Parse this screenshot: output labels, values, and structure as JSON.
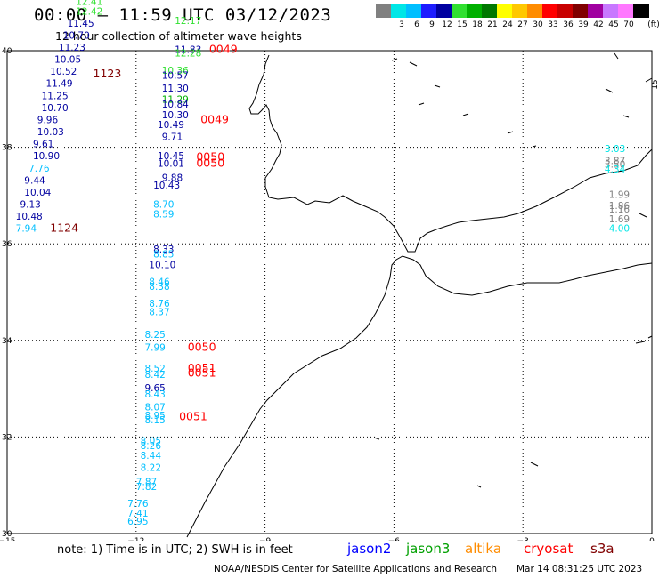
{
  "header": {
    "title": "00:00 – 11:59 UTC 03/12/2023",
    "subtitle": "12 hour collection of altimeter wave heights"
  },
  "scale": {
    "unit": "(ft)",
    "steps": [
      {
        "label": "",
        "color": "#808080"
      },
      {
        "label": "3",
        "color": "#00e6e6"
      },
      {
        "label": "6",
        "color": "#00bfff"
      },
      {
        "label": "9",
        "color": "#1c1cff"
      },
      {
        "label": "12",
        "color": "#0000a0"
      },
      {
        "label": "15",
        "color": "#30e030"
      },
      {
        "label": "18",
        "color": "#00b000"
      },
      {
        "label": "21",
        "color": "#007800"
      },
      {
        "label": "24",
        "color": "#ffff00"
      },
      {
        "label": "27",
        "color": "#ffc800"
      },
      {
        "label": "30",
        "color": "#ff8c00"
      },
      {
        "label": "33",
        "color": "#ff0000"
      },
      {
        "label": "36",
        "color": "#c80000"
      },
      {
        "label": "39",
        "color": "#800000"
      },
      {
        "label": "42",
        "color": "#a000a0"
      },
      {
        "label": "45",
        "color": "#c878ff"
      },
      {
        "label": "70",
        "color": "#ff78ff"
      },
      {
        "label": "",
        "color": "#000000"
      }
    ]
  },
  "map": {
    "lon_range": [
      -15,
      0
    ],
    "lat_range": [
      30,
      40
    ],
    "lon_ticks": [
      "−15",
      "−12",
      "−9",
      "−6",
      "−3",
      "0"
    ],
    "lat_ticks": [
      "40",
      "38",
      "36",
      "34",
      "32",
      "30"
    ],
    "right_label": "15"
  },
  "tracks": [
    {
      "name": "track-a",
      "points": [
        {
          "v": "12.41",
          "lon": -13.4,
          "lat": 40.95,
          "color": "#30e030"
        },
        {
          "v": "12.42",
          "lon": -13.4,
          "lat": 40.75,
          "color": "#30e030"
        },
        {
          "v": "11.45",
          "lon": -13.6,
          "lat": 40.5,
          "color": "#0000a0"
        },
        {
          "v": "10.70",
          "lon": -13.7,
          "lat": 40.25,
          "color": "#0000a0"
        },
        {
          "v": "11.23",
          "lon": -13.8,
          "lat": 40.0,
          "color": "#0000a0"
        },
        {
          "v": "10.05",
          "lon": -13.9,
          "lat": 39.75,
          "color": "#0000a0"
        },
        {
          "v": "10.52",
          "lon": -14.0,
          "lat": 39.5,
          "color": "#0000a0"
        },
        {
          "v": "11.49",
          "lon": -14.1,
          "lat": 39.25,
          "color": "#0000a0"
        },
        {
          "v": "11.25",
          "lon": -14.2,
          "lat": 39.0,
          "color": "#0000a0"
        },
        {
          "v": "10.70",
          "lon": -14.2,
          "lat": 38.75,
          "color": "#0000a0"
        },
        {
          "v": "9.96",
          "lon": -14.3,
          "lat": 38.5,
          "color": "#0000a0"
        },
        {
          "v": "10.03",
          "lon": -14.3,
          "lat": 38.25,
          "color": "#0000a0"
        },
        {
          "v": "9.61",
          "lon": -14.4,
          "lat": 38.0,
          "color": "#0000a0"
        },
        {
          "v": "10.90",
          "lon": -14.4,
          "lat": 37.75,
          "color": "#0000a0"
        },
        {
          "v": "7.76",
          "lon": -14.5,
          "lat": 37.5,
          "color": "#00bfff"
        },
        {
          "v": "9.44",
          "lon": -14.6,
          "lat": 37.25,
          "color": "#0000a0"
        },
        {
          "v": "10.04",
          "lon": -14.6,
          "lat": 37.0,
          "color": "#0000a0"
        },
        {
          "v": "9.13",
          "lon": -14.7,
          "lat": 36.75,
          "color": "#0000a0"
        },
        {
          "v": "10.48",
          "lon": -14.8,
          "lat": 36.5,
          "color": "#0000a0"
        },
        {
          "v": "7.94",
          "lon": -14.8,
          "lat": 36.25,
          "color": "#00bfff"
        }
      ],
      "times": [
        {
          "t": "1123",
          "lon": -13.0,
          "lat": 39.45,
          "color": "#800000"
        },
        {
          "t": "1124",
          "lon": -14.0,
          "lat": 36.25,
          "color": "#800000"
        }
      ]
    },
    {
      "name": "track-b",
      "points": [
        {
          "v": "12.17",
          "lon": -11.1,
          "lat": 40.55,
          "color": "#30e030"
        },
        {
          "v": "11.83",
          "lon": -11.1,
          "lat": 39.95,
          "color": "#0000a0"
        },
        {
          "v": "12.28",
          "lon": -11.1,
          "lat": 39.88,
          "color": "#30e030"
        },
        {
          "v": "10.36",
          "lon": -11.4,
          "lat": 39.52,
          "color": "#30e030"
        },
        {
          "v": "10.57",
          "lon": -11.4,
          "lat": 39.42,
          "color": "#0000a0"
        },
        {
          "v": "11.30",
          "lon": -11.4,
          "lat": 39.15,
          "color": "#0000a0"
        },
        {
          "v": "11.29",
          "lon": -11.4,
          "lat": 38.92,
          "color": "#00b000"
        },
        {
          "v": "10.84",
          "lon": -11.4,
          "lat": 38.82,
          "color": "#0000a0"
        },
        {
          "v": "10.30",
          "lon": -11.4,
          "lat": 38.6,
          "color": "#0000a0"
        },
        {
          "v": "10.49",
          "lon": -11.5,
          "lat": 38.4,
          "color": "#0000a0"
        },
        {
          "v": "9.71",
          "lon": -11.4,
          "lat": 38.15,
          "color": "#0000a0"
        },
        {
          "v": "10.45",
          "lon": -11.5,
          "lat": 37.75,
          "color": "#0000a0"
        },
        {
          "v": "10.01",
          "lon": -11.5,
          "lat": 37.6,
          "color": "#0000a0"
        },
        {
          "v": "9.88",
          "lon": -11.4,
          "lat": 37.3,
          "color": "#0000a0"
        },
        {
          "v": "10.43",
          "lon": -11.6,
          "lat": 37.15,
          "color": "#0000a0"
        },
        {
          "v": "8.70",
          "lon": -11.6,
          "lat": 36.75,
          "color": "#00bfff"
        },
        {
          "v": "8.59",
          "lon": -11.6,
          "lat": 36.55,
          "color": "#00bfff"
        },
        {
          "v": "8.33",
          "lon": -11.6,
          "lat": 35.82,
          "color": "#0000a0"
        },
        {
          "v": "8.85",
          "lon": -11.6,
          "lat": 35.72,
          "color": "#00bfff"
        },
        {
          "v": "10.10",
          "lon": -11.7,
          "lat": 35.5,
          "color": "#0000a0"
        },
        {
          "v": "8.46",
          "lon": -11.7,
          "lat": 35.15,
          "color": "#00bfff"
        },
        {
          "v": "8.38",
          "lon": -11.7,
          "lat": 35.05,
          "color": "#00bfff"
        },
        {
          "v": "8.76",
          "lon": -11.7,
          "lat": 34.7,
          "color": "#00bfff"
        },
        {
          "v": "8.37",
          "lon": -11.7,
          "lat": 34.52,
          "color": "#00bfff"
        },
        {
          "v": "8.25",
          "lon": -11.8,
          "lat": 34.05,
          "color": "#00bfff"
        },
        {
          "v": "7.99",
          "lon": -11.8,
          "lat": 33.78,
          "color": "#00bfff"
        },
        {
          "v": "8.52",
          "lon": -11.8,
          "lat": 33.35,
          "color": "#00bfff"
        },
        {
          "v": "8.42",
          "lon": -11.8,
          "lat": 33.22,
          "color": "#00bfff"
        },
        {
          "v": "9.65",
          "lon": -11.8,
          "lat": 32.95,
          "color": "#0000a0"
        },
        {
          "v": "8.43",
          "lon": -11.8,
          "lat": 32.82,
          "color": "#00bfff"
        },
        {
          "v": "8.07",
          "lon": -11.8,
          "lat": 32.55,
          "color": "#00bfff"
        },
        {
          "v": "8.95",
          "lon": -11.8,
          "lat": 32.38,
          "color": "#00bfff"
        },
        {
          "v": "8.15",
          "lon": -11.8,
          "lat": 32.28,
          "color": "#00bfff"
        },
        {
          "v": "8.05",
          "lon": -11.9,
          "lat": 31.85,
          "color": "#00bfff"
        },
        {
          "v": "8.26",
          "lon": -11.9,
          "lat": 31.75,
          "color": "#00bfff"
        },
        {
          "v": "8.44",
          "lon": -11.9,
          "lat": 31.55,
          "color": "#00bfff"
        },
        {
          "v": "8.22",
          "lon": -11.9,
          "lat": 31.3,
          "color": "#00bfff"
        },
        {
          "v": "7.87",
          "lon": -12.0,
          "lat": 31.0,
          "color": "#00bfff"
        },
        {
          "v": "7.82",
          "lon": -12.0,
          "lat": 30.9,
          "color": "#00bfff"
        },
        {
          "v": "7.76",
          "lon": -12.2,
          "lat": 30.55,
          "color": "#00bfff"
        },
        {
          "v": "7.41",
          "lon": -12.2,
          "lat": 30.35,
          "color": "#00bfff"
        },
        {
          "v": "6.95",
          "lon": -12.2,
          "lat": 30.18,
          "color": "#00bfff"
        }
      ],
      "times": [
        {
          "t": "0049",
          "lon": -10.3,
          "lat": 39.95,
          "color": "#ff0000"
        },
        {
          "t": "0049",
          "lon": -10.5,
          "lat": 38.5,
          "color": "#ff0000"
        },
        {
          "t": "0050",
          "lon": -10.6,
          "lat": 37.73,
          "color": "#ff0000"
        },
        {
          "t": "0050",
          "lon": -10.6,
          "lat": 37.6,
          "color": "#ff0000"
        },
        {
          "t": "0050",
          "lon": -10.8,
          "lat": 33.78,
          "color": "#ff0000"
        },
        {
          "t": "0051",
          "lon": -10.8,
          "lat": 33.35,
          "color": "#ff0000"
        },
        {
          "t": "0051",
          "lon": -10.8,
          "lat": 33.25,
          "color": "#ff0000"
        },
        {
          "t": "0051",
          "lon": -11.0,
          "lat": 32.35,
          "color": "#ff0000"
        }
      ]
    },
    {
      "name": "track-c",
      "points": [
        {
          "v": "3.03",
          "lon": -1.1,
          "lat": 37.9,
          "color": "#00e6e6"
        },
        {
          "v": "3.87",
          "lon": -1.1,
          "lat": 37.65,
          "color": "#808080"
        },
        {
          "v": "3.50",
          "lon": -1.1,
          "lat": 37.58,
          "color": "#808080"
        },
        {
          "v": "4.34",
          "lon": -1.1,
          "lat": 37.48,
          "color": "#00e6e6"
        },
        {
          "v": "1.99",
          "lon": -1.0,
          "lat": 36.95,
          "color": "#808080"
        },
        {
          "v": "1.86",
          "lon": -1.0,
          "lat": 36.72,
          "color": "#808080"
        },
        {
          "v": "1.16",
          "lon": -1.0,
          "lat": 36.65,
          "color": "#808080"
        },
        {
          "v": "1.69",
          "lon": -1.0,
          "lat": 36.45,
          "color": "#808080"
        },
        {
          "v": "4.00",
          "lon": -1.0,
          "lat": 36.25,
          "color": "#00e6e6"
        }
      ],
      "times": []
    }
  ],
  "footer": {
    "note": "note: 1) Time is in UTC; 2) SWH is in feet",
    "satellites": [
      {
        "name": "jason2",
        "color": "#0000ff"
      },
      {
        "name": "jason3",
        "color": "#00a000"
      },
      {
        "name": "altika",
        "color": "#ff8c00"
      },
      {
        "name": "cryosat",
        "color": "#ff0000"
      },
      {
        "name": "s3a",
        "color": "#800000"
      }
    ],
    "credit": "NOAA/NESDIS Center for Satellite Applications and Research",
    "stamp": "Mar 14 08:31:25 UTC 2023"
  }
}
